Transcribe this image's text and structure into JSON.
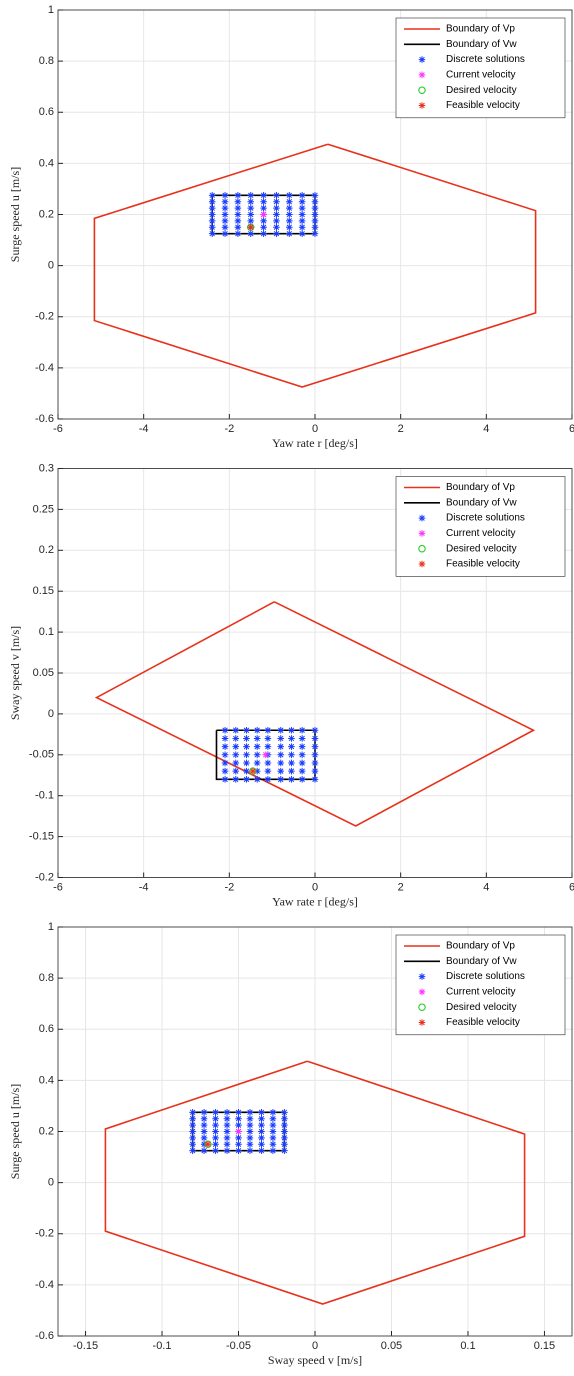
{
  "chart_data": [
    {
      "type": "scatter",
      "xlabel": "Yaw rate r [deg/s]",
      "ylabel": "Surge speed u [m/s]",
      "xlim": [
        -6,
        6
      ],
      "ylim": [
        -0.6,
        1
      ],
      "xticks": [
        -6,
        -4,
        -2,
        0,
        2,
        4,
        6
      ],
      "yticks": [
        -0.6,
        -0.4,
        -0.2,
        0,
        0.2,
        0.4,
        0.6,
        0.8,
        1
      ],
      "grid": true,
      "legend": "upper right",
      "series": [
        {
          "name": "Boundary of Vp",
          "color": "#e8311b",
          "kind": "line",
          "x": [
            0.3,
            5.15,
            5.15,
            -0.3,
            -5.15,
            -5.15,
            0.3
          ],
          "y": [
            0.475,
            0.215,
            -0.185,
            -0.475,
            -0.215,
            0.185,
            0.475
          ]
        },
        {
          "name": "Boundary of Vw",
          "color": "#000000",
          "kind": "line",
          "x": [
            -2.4,
            0,
            0,
            -2.4,
            -2.4
          ],
          "y": [
            0.275,
            0.275,
            0.125,
            0.125,
            0.275
          ]
        },
        {
          "name": "Discrete solutions",
          "color": "#1a3cff",
          "marker": "*",
          "x": [
            -2.4,
            -2.4,
            -2.4,
            -2.4,
            -2.4,
            -2.4,
            -2.4,
            -2.1,
            -2.1,
            -2.1,
            -2.1,
            -2.1,
            -2.1,
            -2.1,
            -1.8,
            -1.8,
            -1.8,
            -1.8,
            -1.8,
            -1.8,
            -1.8,
            -1.5,
            -1.5,
            -1.5,
            -1.5,
            -1.5,
            -1.5,
            -1.5,
            -1.2,
            -1.2,
            -1.2,
            -1.2,
            -1.2,
            -1.2,
            -1.2,
            -0.9,
            -0.9,
            -0.9,
            -0.9,
            -0.9,
            -0.9,
            -0.9,
            -0.6,
            -0.6,
            -0.6,
            -0.6,
            -0.6,
            -0.6,
            -0.6,
            -0.3,
            -0.3,
            -0.3,
            -0.3,
            -0.3,
            -0.3,
            -0.3,
            0,
            0,
            0,
            0,
            0,
            0,
            0
          ],
          "y": [
            0.125,
            0.15,
            0.175,
            0.2,
            0.225,
            0.25,
            0.275,
            0.125,
            0.15,
            0.175,
            0.2,
            0.225,
            0.25,
            0.275,
            0.125,
            0.15,
            0.175,
            0.2,
            0.225,
            0.25,
            0.275,
            0.125,
            0.15,
            0.175,
            0.2,
            0.225,
            0.25,
            0.275,
            0.125,
            0.15,
            0.175,
            0.2,
            0.225,
            0.25,
            0.275,
            0.125,
            0.15,
            0.175,
            0.2,
            0.225,
            0.25,
            0.275,
            0.125,
            0.15,
            0.175,
            0.2,
            0.225,
            0.25,
            0.275,
            0.125,
            0.15,
            0.175,
            0.2,
            0.225,
            0.25,
            0.275,
            0.125,
            0.15,
            0.175,
            0.2,
            0.225,
            0.25,
            0.275
          ]
        },
        {
          "name": "Current velocity",
          "color": "#ff33ff",
          "marker": "*",
          "x": [
            -1.2
          ],
          "y": [
            0.2
          ]
        },
        {
          "name": "Desired velocity",
          "color": "#22cc22",
          "marker": "o",
          "x": [
            -1.5
          ],
          "y": [
            0.15
          ]
        },
        {
          "name": "Feasible velocity",
          "color": "#e8311b",
          "marker": "*",
          "x": [
            -1.5
          ],
          "y": [
            0.15
          ]
        }
      ]
    },
    {
      "type": "scatter",
      "xlabel": "Yaw rate r [deg/s]",
      "ylabel": "Sway speed v [m/s]",
      "xlim": [
        -6,
        6
      ],
      "ylim": [
        -0.2,
        0.3
      ],
      "xticks": [
        -6,
        -4,
        -2,
        0,
        2,
        4,
        6
      ],
      "yticks": [
        -0.2,
        -0.15,
        -0.1,
        -0.05,
        0,
        0.05,
        0.1,
        0.15,
        0.2,
        0.25,
        0.3
      ],
      "grid": true,
      "legend": "upper right",
      "series": [
        {
          "name": "Boundary of Vp",
          "color": "#e8311b",
          "kind": "line",
          "x": [
            -0.95,
            5.1,
            0.95,
            -5.1,
            -0.95
          ],
          "y": [
            0.137,
            -0.02,
            -0.137,
            0.02,
            0.137
          ]
        },
        {
          "name": "Boundary of Vw",
          "color": "#000000",
          "kind": "line",
          "x": [
            -2.3,
            0,
            0,
            -2.3,
            -2.3
          ],
          "y": [
            -0.02,
            -0.02,
            -0.08,
            -0.08,
            -0.02
          ]
        },
        {
          "name": "Discrete solutions",
          "color": "#1a3cff",
          "marker": "*",
          "x": [
            -2.1,
            -2.1,
            -2.1,
            -2.1,
            -2.1,
            -2.1,
            -2.1,
            -1.85,
            -1.85,
            -1.85,
            -1.85,
            -1.85,
            -1.85,
            -1.85,
            -1.6,
            -1.6,
            -1.6,
            -1.6,
            -1.6,
            -1.6,
            -1.6,
            -1.35,
            -1.35,
            -1.35,
            -1.35,
            -1.35,
            -1.35,
            -1.35,
            -1.1,
            -1.1,
            -1.1,
            -1.1,
            -1.1,
            -1.1,
            -1.1,
            -0.8,
            -0.8,
            -0.8,
            -0.8,
            -0.8,
            -0.8,
            -0.8,
            -0.55,
            -0.55,
            -0.55,
            -0.55,
            -0.55,
            -0.55,
            -0.55,
            -0.3,
            -0.3,
            -0.3,
            -0.3,
            -0.3,
            -0.3,
            -0.3,
            0,
            0,
            0,
            0,
            0,
            0,
            0
          ],
          "y": [
            -0.08,
            -0.07,
            -0.06,
            -0.05,
            -0.04,
            -0.03,
            -0.02,
            -0.08,
            -0.07,
            -0.06,
            -0.05,
            -0.04,
            -0.03,
            -0.02,
            -0.08,
            -0.07,
            -0.06,
            -0.05,
            -0.04,
            -0.03,
            -0.02,
            -0.08,
            -0.07,
            -0.06,
            -0.05,
            -0.04,
            -0.03,
            -0.02,
            -0.08,
            -0.07,
            -0.06,
            -0.05,
            -0.04,
            -0.03,
            -0.02,
            -0.08,
            -0.07,
            -0.06,
            -0.05,
            -0.04,
            -0.03,
            -0.02,
            -0.08,
            -0.07,
            -0.06,
            -0.05,
            -0.04,
            -0.03,
            -0.02,
            -0.08,
            -0.07,
            -0.06,
            -0.05,
            -0.04,
            -0.03,
            -0.02,
            -0.08,
            -0.07,
            -0.06,
            -0.05,
            -0.04,
            -0.03,
            -0.02
          ]
        },
        {
          "name": "Current velocity",
          "color": "#ff33ff",
          "marker": "*",
          "x": [
            -1.15
          ],
          "y": [
            -0.05
          ]
        },
        {
          "name": "Desired velocity",
          "color": "#22cc22",
          "marker": "o",
          "x": [
            -1.45
          ],
          "y": [
            -0.07
          ]
        },
        {
          "name": "Feasible velocity",
          "color": "#e8311b",
          "marker": "*",
          "x": [
            -1.45
          ],
          "y": [
            -0.07
          ]
        }
      ]
    },
    {
      "type": "scatter",
      "xlabel": "Sway speed v [m/s]",
      "ylabel": "Surge speed u [m/s]",
      "xlim": [
        -0.168,
        0.168
      ],
      "ylim": [
        -0.6,
        1
      ],
      "xticks": [
        -0.15,
        -0.1,
        -0.05,
        0,
        0.05,
        0.1,
        0.15
      ],
      "yticks": [
        -0.6,
        -0.4,
        -0.2,
        0,
        0.2,
        0.4,
        0.6,
        0.8,
        1
      ],
      "grid": true,
      "legend": "upper right",
      "series": [
        {
          "name": "Boundary of Vp",
          "color": "#e8311b",
          "kind": "line",
          "x": [
            -0.005,
            0.137,
            0.137,
            0.005,
            -0.137,
            -0.137,
            -0.005
          ],
          "y": [
            0.475,
            0.19,
            -0.21,
            -0.475,
            -0.19,
            0.21,
            0.475
          ]
        },
        {
          "name": "Boundary of Vw",
          "color": "#000000",
          "kind": "line",
          "x": [
            -0.08,
            -0.02,
            -0.02,
            -0.08,
            -0.08
          ],
          "y": [
            0.275,
            0.275,
            0.125,
            0.125,
            0.275
          ]
        },
        {
          "name": "Discrete solutions",
          "color": "#1a3cff",
          "marker": "*",
          "x": [
            -0.08,
            -0.08,
            -0.08,
            -0.08,
            -0.08,
            -0.08,
            -0.08,
            -0.0725,
            -0.0725,
            -0.0725,
            -0.0725,
            -0.0725,
            -0.0725,
            -0.0725,
            -0.065,
            -0.065,
            -0.065,
            -0.065,
            -0.065,
            -0.065,
            -0.065,
            -0.0575,
            -0.0575,
            -0.0575,
            -0.0575,
            -0.0575,
            -0.0575,
            -0.0575,
            -0.05,
            -0.05,
            -0.05,
            -0.05,
            -0.05,
            -0.05,
            -0.05,
            -0.0425,
            -0.0425,
            -0.0425,
            -0.0425,
            -0.0425,
            -0.0425,
            -0.0425,
            -0.035,
            -0.035,
            -0.035,
            -0.035,
            -0.035,
            -0.035,
            -0.035,
            -0.0275,
            -0.0275,
            -0.0275,
            -0.0275,
            -0.0275,
            -0.0275,
            -0.0275,
            -0.02,
            -0.02,
            -0.02,
            -0.02,
            -0.02,
            -0.02,
            -0.02
          ],
          "y": [
            0.125,
            0.15,
            0.175,
            0.2,
            0.225,
            0.25,
            0.275,
            0.125,
            0.15,
            0.175,
            0.2,
            0.225,
            0.25,
            0.275,
            0.125,
            0.15,
            0.175,
            0.2,
            0.225,
            0.25,
            0.275,
            0.125,
            0.15,
            0.175,
            0.2,
            0.225,
            0.25,
            0.275,
            0.125,
            0.15,
            0.175,
            0.2,
            0.225,
            0.25,
            0.275,
            0.125,
            0.15,
            0.175,
            0.2,
            0.225,
            0.25,
            0.275,
            0.125,
            0.15,
            0.175,
            0.2,
            0.225,
            0.25,
            0.275,
            0.125,
            0.15,
            0.175,
            0.2,
            0.225,
            0.25,
            0.275,
            0.125,
            0.15,
            0.175,
            0.2,
            0.225,
            0.25,
            0.275
          ]
        },
        {
          "name": "Current velocity",
          "color": "#ff33ff",
          "marker": "*",
          "x": [
            -0.05
          ],
          "y": [
            0.2
          ]
        },
        {
          "name": "Desired velocity",
          "color": "#22cc22",
          "marker": "o",
          "x": [
            -0.07
          ],
          "y": [
            0.15
          ]
        },
        {
          "name": "Feasible velocity",
          "color": "#e8311b",
          "marker": "*",
          "x": [
            -0.07
          ],
          "y": [
            0.15
          ]
        }
      ]
    }
  ]
}
